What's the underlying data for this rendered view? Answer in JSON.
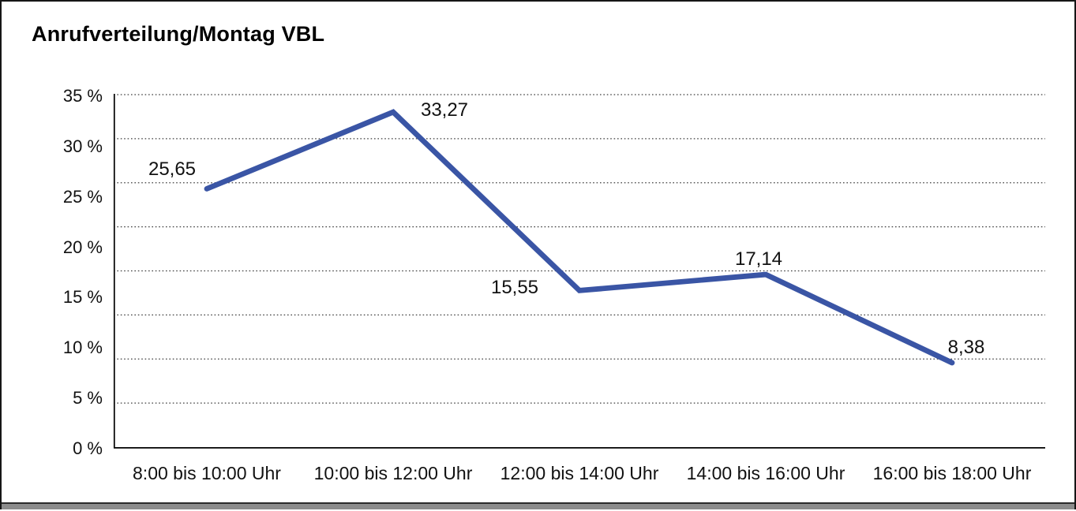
{
  "title": "Anrufverteilung/Montag VBL",
  "chart_data": {
    "type": "line",
    "title": "Anrufverteilung/Montag VBL",
    "categories": [
      "8:00 bis 10:00 Uhr",
      "10:00 bis 12:00 Uhr",
      "12:00 bis 14:00 Uhr",
      "14:00 bis 16:00 Uhr",
      "16:00 bis 18:00 Uhr"
    ],
    "series": [
      {
        "name": "Anrufverteilung Montag VBL",
        "values": [
          25.65,
          33.27,
          15.55,
          17.14,
          8.38
        ]
      }
    ],
    "value_labels": [
      "25,65",
      "33,27",
      "15,55",
      "17,14",
      "8,38"
    ],
    "y_tick_values": [
      35,
      30,
      25,
      20,
      15,
      10,
      5,
      0
    ],
    "y_tick_labels": [
      "35 %",
      "30 %",
      "25 %",
      "20 %",
      "15 %",
      "10 %",
      "5 %",
      "0 %"
    ],
    "ylim": [
      0,
      35
    ],
    "xlabel": "",
    "ylabel": "",
    "grid": "horizontal dotted lines, 8 equal divisions",
    "legend_position": "none",
    "line_color": "#3A55A5",
    "axis_color": "#000000",
    "gridline_color": "#3f3f3f",
    "text_color": "#111111",
    "background_color": "#ffffff"
  }
}
